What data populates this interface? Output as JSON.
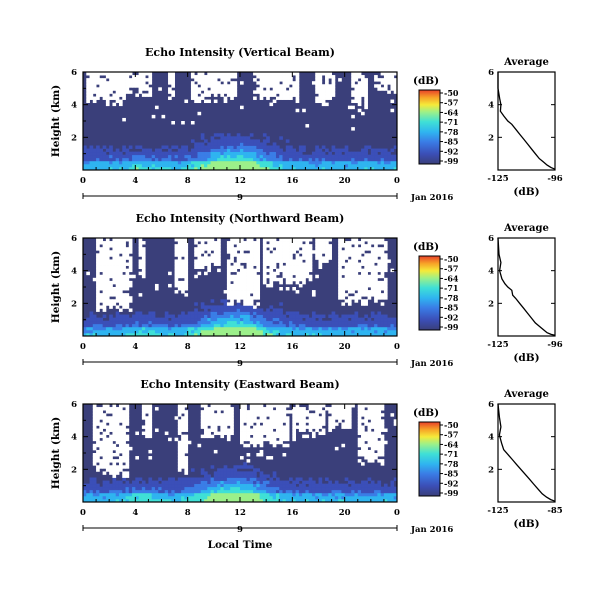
{
  "colors": {
    "background_plot": "#3a3f7a",
    "echo_scale": [
      "#3a3f7a",
      "#3b4fb8",
      "#3a7de6",
      "#2fb4f0",
      "#3fe0d6",
      "#9cf08a",
      "#f5ea3a",
      "#f7a227",
      "#e8402a"
    ]
  },
  "chart_data": [
    {
      "type": "heatmap",
      "title": "Echo Intensity (Vertical Beam)",
      "ylabel": "Height (km)",
      "y_ticks": [
        "2",
        "4",
        "6"
      ],
      "x_ticks": [
        "0",
        "4",
        "8",
        "12",
        "16",
        "20",
        "0"
      ],
      "ylim": [
        0,
        6
      ],
      "xlim": [
        0,
        24
      ],
      "date_axis": {
        "label": "Jan 2016",
        "tick": "9"
      },
      "colorbar": {
        "unit": "(dB)",
        "ticks": [
          "-50",
          "-57",
          "-64",
          "-71",
          "-78",
          "-85",
          "-92",
          "-99"
        ]
      },
      "profile": {
        "title": "Average",
        "xlabel": "(dB)",
        "x_ticks": [
          "-125",
          "-96"
        ],
        "y_ticks": [
          "2",
          "4",
          "6"
        ],
        "xlim": [
          -125,
          -96
        ],
        "ylim": [
          0,
          6
        ],
        "x": [
          -125,
          -125,
          -124.2,
          -123.5,
          -123.8,
          -122,
          -120,
          -118,
          -116,
          -114,
          -112,
          -110,
          -108,
          -106,
          -104,
          -102,
          -100,
          -98,
          -96
        ],
        "y": [
          6,
          5,
          4.4,
          4,
          3.6,
          3.3,
          3,
          2.8,
          2.5,
          2.2,
          1.9,
          1.6,
          1.3,
          1.0,
          0.7,
          0.5,
          0.3,
          0.15,
          0.05
        ]
      }
    },
    {
      "type": "heatmap",
      "title": "Echo Intensity (Northward Beam)",
      "ylabel": "Height (km)",
      "y_ticks": [
        "2",
        "4",
        "6"
      ],
      "x_ticks": [
        "0",
        "4",
        "8",
        "12",
        "16",
        "20",
        "0"
      ],
      "ylim": [
        0,
        6
      ],
      "xlim": [
        0,
        24
      ],
      "date_axis": {
        "label": "Jan 2016",
        "tick": "9"
      },
      "colorbar": {
        "unit": "(dB)",
        "ticks": [
          "-50",
          "-57",
          "-64",
          "-71",
          "-78",
          "-85",
          "-92",
          "-99"
        ]
      },
      "profile": {
        "title": "Average",
        "xlabel": "(dB)",
        "x_ticks": [
          "-125",
          "-96"
        ],
        "y_ticks": [
          "2",
          "4",
          "6"
        ],
        "xlim": [
          -125,
          -96
        ],
        "ylim": [
          0,
          6
        ],
        "x": [
          -125,
          -124.5,
          -123.5,
          -124.2,
          -123,
          -121.5,
          -120,
          -118,
          -117.5,
          -116,
          -114,
          -112,
          -110,
          -108,
          -106,
          -104,
          -102,
          -100,
          -98,
          -96
        ],
        "y": [
          6,
          5,
          4.5,
          4,
          3.5,
          3.2,
          3.0,
          2.8,
          2.5,
          2.3,
          2.0,
          1.7,
          1.4,
          1.1,
          0.8,
          0.6,
          0.4,
          0.2,
          0.1,
          0.05
        ]
      }
    },
    {
      "type": "heatmap",
      "title": "Echo Intensity (Eastward Beam)",
      "ylabel": "Height (km)",
      "y_ticks": [
        "2",
        "4",
        "6"
      ],
      "x_ticks": [
        "0",
        "4",
        "8",
        "12",
        "16",
        "20",
        "0"
      ],
      "ylim": [
        0,
        6
      ],
      "xlim": [
        0,
        24
      ],
      "date_axis": {
        "label": "Jan 2016",
        "tick": "9"
      },
      "xlabel": "Local Time",
      "colorbar": {
        "unit": "(dB)",
        "ticks": [
          "-50",
          "-57",
          "-64",
          "-71",
          "-78",
          "-85",
          "-92",
          "-99"
        ]
      },
      "profile": {
        "title": "Average",
        "xlabel": "(dB)",
        "x_ticks": [
          "-125",
          "-85"
        ],
        "y_ticks": [
          "2",
          "4",
          "6"
        ],
        "xlim": [
          -125,
          -85
        ],
        "ylim": [
          0,
          6
        ],
        "x": [
          -125,
          -124,
          -123,
          -124,
          -122.5,
          -121,
          -118,
          -115,
          -112,
          -109,
          -106,
          -103,
          -100,
          -97,
          -94,
          -91,
          -88,
          -85
        ],
        "y": [
          6,
          5.2,
          4.6,
          4.1,
          3.6,
          3.2,
          2.9,
          2.6,
          2.3,
          2.0,
          1.7,
          1.4,
          1.1,
          0.8,
          0.5,
          0.3,
          0.15,
          0.05
        ]
      }
    }
  ]
}
